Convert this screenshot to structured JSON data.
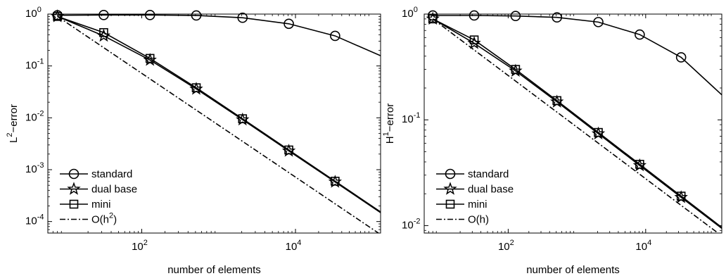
{
  "chart_data": [
    {
      "type": "line",
      "xlabel": "number of elements",
      "ylabel": "L",
      "ylabel_sup": "2",
      "ylabel_rest": "−error",
      "x_scale": "log",
      "y_scale": "log",
      "xlim": [
        6,
        128000
      ],
      "ylim": [
        6e-05,
        1
      ],
      "x_ticks": [
        {
          "value": 100,
          "base": "10",
          "exp": "2"
        },
        {
          "value": 10000,
          "base": "10",
          "exp": "4"
        }
      ],
      "y_ticks": [
        {
          "value": 1,
          "base": "10",
          "exp": "0"
        },
        {
          "value": 0.1,
          "base": "10",
          "exp": "-1"
        },
        {
          "value": 0.01,
          "base": "10",
          "exp": "-2"
        },
        {
          "value": 0.001,
          "base": "10",
          "exp": "-3"
        },
        {
          "value": 0.0001,
          "base": "10",
          "exp": "-4"
        }
      ],
      "legend_position": "bottom-left",
      "series": [
        {
          "name": "standard",
          "marker": "circle",
          "line": "solid",
          "x": [
            8,
            32,
            128,
            512,
            2048,
            8192,
            32768,
            131072
          ],
          "y": [
            0.95,
            0.96,
            0.96,
            0.94,
            0.85,
            0.65,
            0.38,
            0.155
          ]
        },
        {
          "name": "dual base",
          "marker": "star",
          "line": "solid",
          "x": [
            8,
            32,
            128,
            512,
            2048,
            8192,
            32768,
            131072
          ],
          "y": [
            0.9,
            0.38,
            0.13,
            0.036,
            0.0092,
            0.0023,
            0.00058,
            0.000145
          ]
        },
        {
          "name": "mini",
          "marker": "square",
          "line": "solid",
          "x": [
            8,
            32,
            128,
            512,
            2048,
            8192,
            32768,
            131072
          ],
          "y": [
            0.9,
            0.44,
            0.14,
            0.038,
            0.0096,
            0.0024,
            0.0006,
            0.00015
          ]
        },
        {
          "name": "O(h",
          "name_sup": "2",
          "name_rest": ")",
          "marker": "none",
          "line": "dashdot",
          "x": [
            8,
            131072
          ],
          "y": [
            0.9,
            5.49e-05
          ]
        }
      ]
    },
    {
      "type": "line",
      "xlabel": "number of elements",
      "ylabel": "H",
      "ylabel_sup": "1",
      "ylabel_rest": "−error",
      "x_scale": "log",
      "y_scale": "log",
      "xlim": [
        6,
        128000
      ],
      "ylim": [
        0.0085,
        1
      ],
      "x_ticks": [
        {
          "value": 100,
          "base": "10",
          "exp": "2"
        },
        {
          "value": 10000,
          "base": "10",
          "exp": "4"
        }
      ],
      "y_ticks": [
        {
          "value": 1,
          "base": "10",
          "exp": "0"
        },
        {
          "value": 0.1,
          "base": "10",
          "exp": "-1"
        },
        {
          "value": 0.01,
          "base": "10",
          "exp": "-2"
        }
      ],
      "legend_position": "bottom-left",
      "series": [
        {
          "name": "standard",
          "marker": "circle",
          "line": "solid",
          "x": [
            8,
            32,
            128,
            512,
            2048,
            8192,
            32768,
            131072
          ],
          "y": [
            0.97,
            0.97,
            0.96,
            0.93,
            0.84,
            0.64,
            0.39,
            0.17
          ]
        },
        {
          "name": "dual base",
          "marker": "star",
          "line": "solid",
          "x": [
            8,
            32,
            128,
            512,
            2048,
            8192,
            32768,
            131072
          ],
          "y": [
            0.9,
            0.53,
            0.29,
            0.148,
            0.074,
            0.037,
            0.0185,
            0.0093
          ]
        },
        {
          "name": "mini",
          "marker": "square",
          "line": "solid",
          "x": [
            8,
            32,
            128,
            512,
            2048,
            8192,
            32768,
            131072
          ],
          "y": [
            0.9,
            0.57,
            0.3,
            0.152,
            0.076,
            0.038,
            0.019,
            0.0095
          ]
        },
        {
          "name": "O(h)",
          "marker": "none",
          "line": "dashdot",
          "x": [
            8,
            131072
          ],
          "y": [
            0.9,
            0.0079
          ]
        }
      ]
    }
  ]
}
